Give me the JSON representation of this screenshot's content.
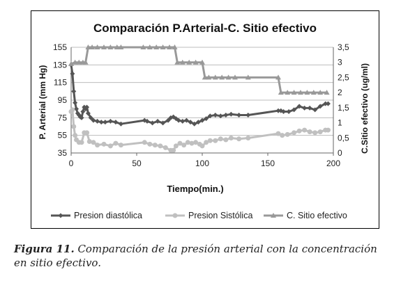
{
  "chart_data": {
    "type": "line",
    "title": "Comparación P.Arterial-C. Sitio efectivo",
    "xlabel": "Tiempo(min.)",
    "ylabel_left": "P. Arterial (mm Hg)",
    "ylabel_right": "C.Sitio efectivo (ug/ml)",
    "x_ticks": [
      "0",
      "50",
      "100",
      "150",
      "200"
    ],
    "y_left_ticks": [
      "35",
      "55",
      "75",
      "95",
      "115",
      "135",
      "155"
    ],
    "y_right_ticks": [
      "0",
      "0,5",
      "1",
      "1,5",
      "2",
      "2,5",
      "3",
      "3,5"
    ],
    "xlim": [
      0,
      200
    ],
    "ylim_left": [
      35,
      155
    ],
    "ylim_right": [
      0,
      3.5
    ],
    "grid": true,
    "legend_position": "bottom",
    "series": [
      {
        "name": "Presion diastólica",
        "axis": "left",
        "color": "#555555",
        "marker": "diamond",
        "points": [
          [
            0,
            135
          ],
          [
            1,
            125
          ],
          [
            2,
            105
          ],
          [
            3,
            92
          ],
          [
            4,
            85
          ],
          [
            5,
            80
          ],
          [
            6,
            78
          ],
          [
            7,
            76
          ],
          [
            8,
            75
          ],
          [
            9,
            82
          ],
          [
            10,
            87
          ],
          [
            11,
            85
          ],
          [
            12,
            87
          ],
          [
            13,
            80
          ],
          [
            15,
            75
          ],
          [
            17,
            72
          ],
          [
            20,
            71
          ],
          [
            23,
            70
          ],
          [
            26,
            70
          ],
          [
            30,
            71
          ],
          [
            34,
            70
          ],
          [
            38,
            68
          ],
          [
            56,
            72
          ],
          [
            58,
            71
          ],
          [
            62,
            69
          ],
          [
            66,
            71
          ],
          [
            70,
            69
          ],
          [
            74,
            72
          ],
          [
            76,
            75
          ],
          [
            78,
            76
          ],
          [
            80,
            74
          ],
          [
            82,
            72
          ],
          [
            85,
            71
          ],
          [
            88,
            72
          ],
          [
            91,
            70
          ],
          [
            94,
            68
          ],
          [
            97,
            70
          ],
          [
            100,
            72
          ],
          [
            103,
            74
          ],
          [
            106,
            77
          ],
          [
            110,
            78
          ],
          [
            114,
            77
          ],
          [
            118,
            78
          ],
          [
            122,
            79
          ],
          [
            128,
            78
          ],
          [
            135,
            78
          ],
          [
            158,
            83
          ],
          [
            160,
            83
          ],
          [
            162,
            82
          ],
          [
            166,
            82
          ],
          [
            170,
            84
          ],
          [
            174,
            88
          ],
          [
            178,
            86
          ],
          [
            182,
            86
          ],
          [
            186,
            84
          ],
          [
            190,
            88
          ],
          [
            194,
            91
          ],
          [
            196,
            91
          ]
        ]
      },
      {
        "name": "Presion Sistólica",
        "axis": "left",
        "color": "#c0c0c0",
        "marker": "circle",
        "points": [
          [
            0,
            82
          ],
          [
            1,
            84
          ],
          [
            2,
            65
          ],
          [
            3,
            55
          ],
          [
            4,
            50
          ],
          [
            6,
            47
          ],
          [
            8,
            47
          ],
          [
            10,
            58
          ],
          [
            12,
            58
          ],
          [
            14,
            48
          ],
          [
            17,
            47
          ],
          [
            20,
            44
          ],
          [
            25,
            45
          ],
          [
            30,
            43
          ],
          [
            34,
            46
          ],
          [
            38,
            44
          ],
          [
            56,
            47
          ],
          [
            60,
            45
          ],
          [
            64,
            44
          ],
          [
            68,
            43
          ],
          [
            72,
            41
          ],
          [
            76,
            38
          ],
          [
            78,
            38
          ],
          [
            80,
            43
          ],
          [
            83,
            46
          ],
          [
            86,
            44
          ],
          [
            89,
            47
          ],
          [
            92,
            46
          ],
          [
            95,
            47
          ],
          [
            98,
            45
          ],
          [
            100,
            43
          ],
          [
            103,
            47
          ],
          [
            106,
            49
          ],
          [
            110,
            49
          ],
          [
            114,
            51
          ],
          [
            118,
            50
          ],
          [
            122,
            52
          ],
          [
            128,
            51
          ],
          [
            135,
            52
          ],
          [
            158,
            57
          ],
          [
            161,
            55
          ],
          [
            165,
            56
          ],
          [
            170,
            58
          ],
          [
            174,
            60
          ],
          [
            178,
            61
          ],
          [
            182,
            59
          ],
          [
            186,
            58
          ],
          [
            190,
            59
          ],
          [
            194,
            61
          ],
          [
            196,
            61
          ]
        ]
      },
      {
        "name": "C. Sitio efectivo",
        "axis": "right",
        "color": "#999999",
        "marker": "triangle",
        "points": [
          [
            0,
            2.95
          ],
          [
            3,
            3.0
          ],
          [
            6,
            3.0
          ],
          [
            9,
            3.0
          ],
          [
            11,
            3.0
          ],
          [
            13,
            3.5
          ],
          [
            16,
            3.5
          ],
          [
            20,
            3.5
          ],
          [
            25,
            3.5
          ],
          [
            30,
            3.5
          ],
          [
            35,
            3.5
          ],
          [
            38,
            3.5
          ],
          [
            55,
            3.5
          ],
          [
            60,
            3.5
          ],
          [
            65,
            3.5
          ],
          [
            70,
            3.5
          ],
          [
            75,
            3.5
          ],
          [
            79,
            3.5
          ],
          [
            81,
            3.0
          ],
          [
            85,
            3.0
          ],
          [
            90,
            3.0
          ],
          [
            95,
            3.0
          ],
          [
            100,
            3.0
          ],
          [
            102,
            2.5
          ],
          [
            105,
            2.5
          ],
          [
            110,
            2.5
          ],
          [
            115,
            2.5
          ],
          [
            120,
            2.5
          ],
          [
            125,
            2.5
          ],
          [
            135,
            2.5
          ],
          [
            158,
            2.5
          ],
          [
            160,
            2.0
          ],
          [
            165,
            2.0
          ],
          [
            170,
            2.0
          ],
          [
            175,
            2.0
          ],
          [
            180,
            2.0
          ],
          [
            185,
            2.0
          ],
          [
            190,
            2.0
          ],
          [
            195,
            2.0
          ]
        ]
      }
    ]
  },
  "caption": {
    "figure_label": "Figura 11.",
    "text": " Comparación de la presión arterial con la concentración en sitio efectivo."
  }
}
